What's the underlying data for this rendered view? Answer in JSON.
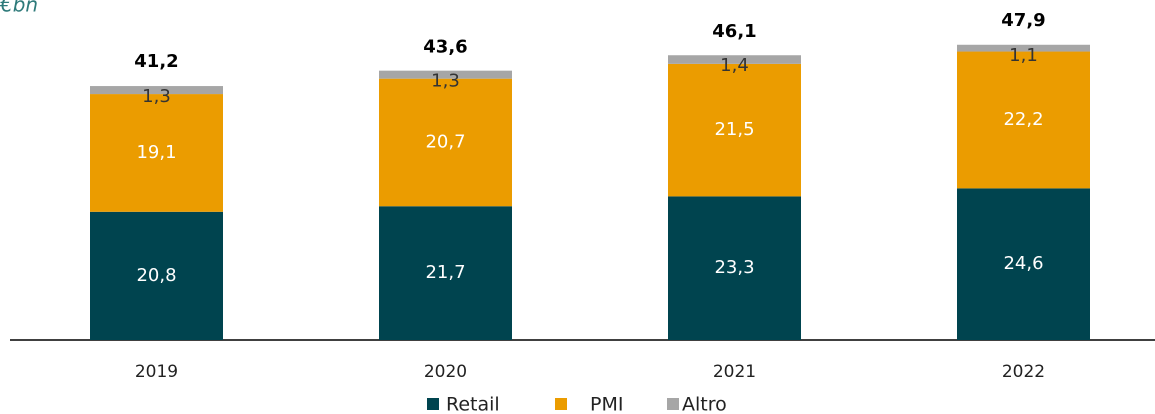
{
  "chart_data": {
    "type": "stacked_bar",
    "title": "€bn",
    "categories": [
      "2019",
      "2020",
      "2021",
      "2022"
    ],
    "series": [
      {
        "name": "Retail",
        "color": "#00444f",
        "label_color": "#ffffff",
        "values": [
          20.8,
          21.7,
          23.3,
          24.6
        ],
        "value_labels": [
          "20,8",
          "21,7",
          "23,3",
          "24,6"
        ]
      },
      {
        "name": "PMI",
        "color": "#eb9c00",
        "label_color": "#ffffff",
        "values": [
          19.1,
          20.7,
          21.5,
          22.2
        ],
        "value_labels": [
          "19,1",
          "20,7",
          "21,5",
          "22,2"
        ]
      },
      {
        "name": "Altro",
        "color": "#a6a6a6",
        "label_color": "#333333",
        "values": [
          1.3,
          1.3,
          1.4,
          1.1
        ],
        "value_labels": [
          "1,3",
          "1,3",
          "1,4",
          "1,1"
        ]
      }
    ],
    "totals": [
      41.2,
      43.6,
      46.1,
      47.9
    ],
    "total_labels": [
      "41,2",
      "43,6",
      "46,1",
      "47,9"
    ],
    "ylim": [
      0,
      55
    ]
  }
}
